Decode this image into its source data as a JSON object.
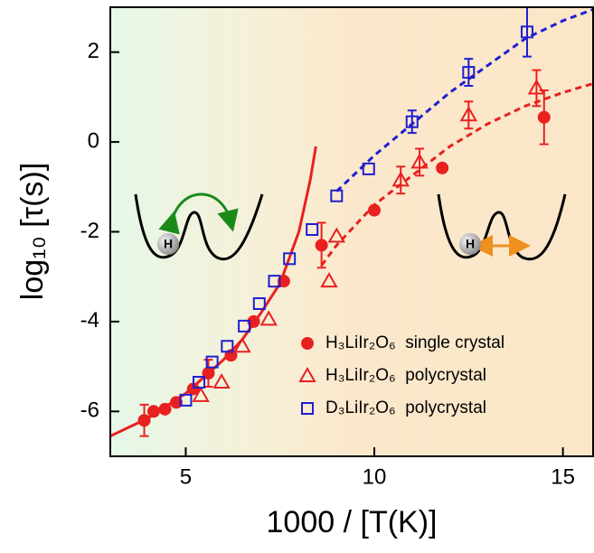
{
  "chart_data": {
    "type": "scatter",
    "xlabel": "1000 / [T(K)]",
    "ylabel": "log₁₀ [τ(s)]",
    "xlim": [
      3,
      15.8
    ],
    "ylim": [
      -7,
      3
    ],
    "xticks": [
      5,
      10,
      15
    ],
    "yticks": [
      -6,
      -4,
      -2,
      0,
      2
    ],
    "legend": "lower right",
    "series": [
      {
        "name": "H₃LiIr₂O₆  single crystal",
        "marker": "filled-circle",
        "color": "#e8201f",
        "x": [
          3.9,
          4.15,
          4.45,
          4.75,
          5.2,
          5.6,
          6.2,
          6.8,
          7.6,
          8.6,
          10.0,
          11.8,
          14.5
        ],
        "values": [
          -6.2,
          -6.0,
          -5.95,
          -5.8,
          -5.5,
          -5.15,
          -4.75,
          -4.0,
          -3.1,
          -2.3,
          -1.52,
          -0.58,
          0.55
        ],
        "errors": [
          0.35,
          null,
          null,
          null,
          null,
          0.3,
          null,
          null,
          null,
          0.5,
          null,
          null,
          0.6
        ]
      },
      {
        "name": "H₃LiIr₂O₆  polycrystal",
        "marker": "open-triangle",
        "color": "#e8201f",
        "x": [
          5.4,
          5.95,
          6.5,
          7.2,
          8.8,
          9.0,
          10.7,
          11.2,
          12.5,
          14.3
        ],
        "values": [
          -5.65,
          -5.35,
          -4.55,
          -3.95,
          -3.1,
          -2.1,
          -0.85,
          -0.45,
          0.6,
          1.2
        ],
        "errors": [
          null,
          null,
          null,
          null,
          null,
          null,
          0.3,
          0.3,
          0.3,
          0.4
        ]
      },
      {
        "name": "D₃LiIr₂O₆  polycrystal",
        "marker": "open-square",
        "color": "#1f1fd0",
        "x": [
          5.0,
          5.35,
          5.7,
          6.1,
          6.55,
          6.95,
          7.35,
          7.75,
          8.35,
          9.0,
          9.85,
          11.0,
          12.5,
          14.05
        ],
        "values": [
          -5.75,
          -5.35,
          -4.9,
          -4.55,
          -4.1,
          -3.6,
          -3.1,
          -2.6,
          -1.95,
          -1.2,
          -0.6,
          0.45,
          1.55,
          2.45
        ],
        "errors": [
          null,
          null,
          null,
          null,
          null,
          null,
          null,
          null,
          null,
          null,
          null,
          0.25,
          0.3,
          0.55
        ]
      }
    ],
    "fit_curves": [
      {
        "color": "#e8201f",
        "dashed": false,
        "x": [
          3,
          4,
          5,
          6,
          6.5,
          7,
          7.5,
          8,
          8.3,
          8.45
        ],
        "values": [
          -6.55,
          -6.15,
          -5.6,
          -4.85,
          -4.4,
          -3.8,
          -3.15,
          -2.0,
          -0.85,
          -0.1
        ]
      },
      {
        "color": "#e8201f",
        "dashed": true,
        "x": [
          8.6,
          9,
          10,
          11,
          12,
          13,
          14,
          15,
          15.8
        ],
        "values": [
          -2.75,
          -2.3,
          -1.4,
          -0.75,
          -0.1,
          0.4,
          0.8,
          1.1,
          1.3
        ]
      },
      {
        "color": "#1f1fd0",
        "dashed": true,
        "x": [
          9,
          10,
          11,
          12,
          13,
          14,
          15,
          15.8
        ],
        "values": [
          -1.1,
          -0.3,
          0.4,
          1.1,
          1.7,
          2.3,
          2.7,
          2.95
        ]
      }
    ],
    "insets": [
      "H",
      "H"
    ]
  }
}
